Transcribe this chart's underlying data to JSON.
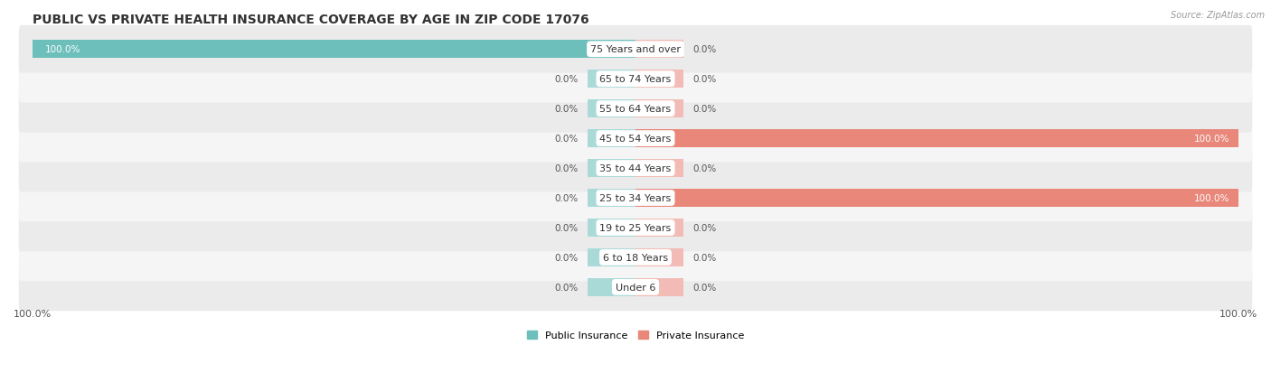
{
  "title": "PUBLIC VS PRIVATE HEALTH INSURANCE COVERAGE BY AGE IN ZIP CODE 17076",
  "source": "Source: ZipAtlas.com",
  "categories": [
    "Under 6",
    "6 to 18 Years",
    "19 to 25 Years",
    "25 to 34 Years",
    "35 to 44 Years",
    "45 to 54 Years",
    "55 to 64 Years",
    "65 to 74 Years",
    "75 Years and over"
  ],
  "public_values": [
    0.0,
    0.0,
    0.0,
    0.0,
    0.0,
    0.0,
    0.0,
    0.0,
    100.0
  ],
  "private_values": [
    0.0,
    0.0,
    0.0,
    100.0,
    0.0,
    100.0,
    0.0,
    0.0,
    0.0
  ],
  "public_color": "#6dbfbc",
  "private_color": "#e8877a",
  "public_zero_color": "#aadad8",
  "private_zero_color": "#f2bbb5",
  "row_colors": [
    "#ebebeb",
    "#f5f5f5"
  ],
  "bg_color": "#ffffff",
  "label_color": "#555555",
  "axis_max": 100.0,
  "zero_stub": 8.0,
  "legend_labels": [
    "Public Insurance",
    "Private Insurance"
  ],
  "bar_height": 0.62,
  "figsize": [
    14.06,
    4.14
  ],
  "dpi": 100,
  "title_fontsize": 10,
  "label_fontsize": 7.5,
  "cat_fontsize": 8,
  "tick_fontsize": 8
}
